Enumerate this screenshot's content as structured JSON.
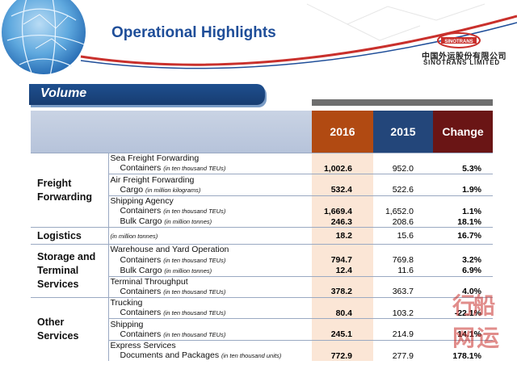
{
  "header": {
    "title": "Operational Highlights",
    "company_cn": "中国外运股份有限公司",
    "company_en": "SINOTRANS LIMITED",
    "logo_text": "SINOTRANS"
  },
  "section": {
    "label": "Volume"
  },
  "table": {
    "columns": [
      "2016",
      "2015",
      "Change"
    ],
    "rows": {
      "r1": {
        "cat": "Freight",
        "desc": "Sea Freight Forwarding"
      },
      "r2": {
        "cat": "Forwarding",
        "desc": "Containers",
        "unit": "(in ten thousand TEUs)",
        "v2016": "1,002.6",
        "v2015": "952.0",
        "change": "5.3%"
      },
      "r3": {
        "desc": "Air Freight Forwarding"
      },
      "r4": {
        "desc": "Cargo",
        "unit": "(in million kilograms)",
        "v2016": "532.4",
        "v2015": "522.6",
        "change": "1.9%"
      },
      "r5": {
        "desc": "Shipping Agency"
      },
      "r6": {
        "desc": "Containers",
        "unit": "(in ten thousand TEUs)",
        "v2016": "1,669.4",
        "v2015": "1,652.0",
        "change": "1.1%"
      },
      "r7": {
        "desc": "Bulk Cargo",
        "unit": "(in million tonnes)",
        "v2016": "246.3",
        "v2015": "208.6",
        "change": "18.1%"
      },
      "r8": {
        "cat": "Logistics",
        "unit": "(in million tonnes)",
        "v2016": "18.2",
        "v2015": "15.6",
        "change": "16.7%"
      },
      "r9": {
        "cat": "Storage and",
        "desc": "Warehouse and Yard Operation"
      },
      "r10": {
        "cat": "Terminal",
        "desc": "Containers",
        "unit": "(in ten thousand TEUs)",
        "v2016": "794.7",
        "v2015": "769.8",
        "change": "3.2%"
      },
      "r11": {
        "cat": "Services",
        "desc": "Bulk Cargo",
        "unit": "(in million tonnes)",
        "v2016": "12.4",
        "v2015": "11.6",
        "change": "6.9%"
      },
      "r12": {
        "desc": "Terminal Throughput"
      },
      "r13": {
        "desc": "Containers",
        "unit": "(in ten thousand TEUs)",
        "v2016": "378.2",
        "v2015": "363.7",
        "change": "4.0%"
      },
      "r14": {
        "cat": "Other",
        "desc": "Trucking"
      },
      "r15": {
        "cat": "Services",
        "desc": "Containers",
        "unit": "(in ten thousand TEUs)",
        "v2016": "80.4",
        "v2015": "103.2",
        "change": "-22.1%"
      },
      "r16": {
        "desc": "Shipping"
      },
      "r17": {
        "desc": "Containers",
        "unit": "(in ten thousand TEUs)",
        "v2016": "245.1",
        "v2015": "214.9",
        "change": "14.1%"
      },
      "r18": {
        "desc": "Express Services"
      },
      "r19": {
        "desc": "Documents and Packages",
        "unit": "(in ten thousand units)",
        "v2016": "772.9",
        "v2015": "277.9",
        "change": "178.1%"
      }
    }
  },
  "watermark": {
    "text": "行船网运"
  },
  "colors": {
    "title": "#1f4e99",
    "col2016": "#b14a12",
    "col2015": "#23467a",
    "colChange": "#6a1515"
  }
}
